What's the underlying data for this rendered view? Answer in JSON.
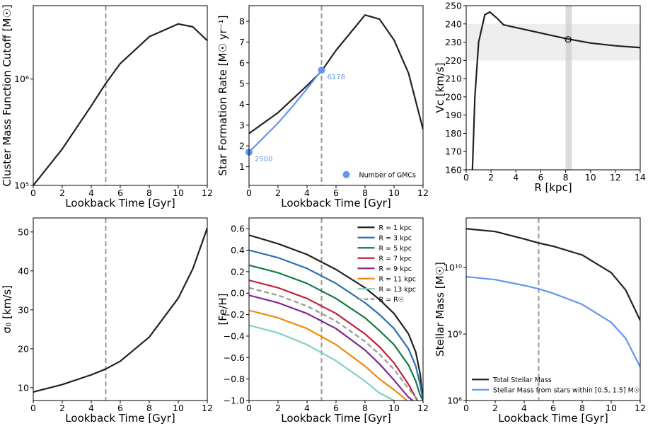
{
  "chart_data": [
    {
      "type": "line",
      "xlabel": "Lookback Time [Gyr]",
      "ylabel": "Cluster Mass Function Cutoff [M☉]",
      "xlim": [
        0,
        12
      ],
      "xticks": [
        0,
        2,
        4,
        6,
        8,
        10,
        12
      ],
      "log_y": true,
      "ylim": [
        100000,
        4900000
      ],
      "yticks": [
        {
          "value": 100000,
          "label": "10⁵"
        },
        {
          "value": 1000000,
          "label": "10⁶"
        }
      ],
      "vline": 5,
      "x": [
        0,
        2,
        4,
        5,
        6,
        8,
        10,
        11,
        12
      ],
      "series": [
        {
          "color": "#222222",
          "values": [
            100000,
            220000,
            560000,
            910000,
            1400000,
            2500000,
            3300000,
            3100000,
            2300000
          ]
        }
      ]
    },
    {
      "type": "line",
      "xlabel": "Lookback Time [Gyr]",
      "ylabel": "Star Formation Rate [M☉ yr⁻¹]",
      "xlim": [
        0,
        12
      ],
      "xticks": [
        0,
        2,
        4,
        6,
        8,
        10,
        12
      ],
      "ylim": [
        0.1,
        8.75
      ],
      "yticks": [
        1,
        2,
        3,
        4,
        5,
        6,
        7,
        8
      ],
      "vline": 5,
      "x": [
        0,
        2,
        4,
        5,
        6,
        8,
        9,
        10,
        11,
        12
      ],
      "series": [
        {
          "color": "#222222",
          "values": [
            2.6,
            3.6,
            4.9,
            5.6,
            6.6,
            8.3,
            8.1,
            7.1,
            5.5,
            2.8
          ]
        },
        {
          "color": "#6495ed",
          "x": [
            0,
            1,
            2,
            3,
            4,
            5
          ],
          "values": [
            1.7,
            2.4,
            3.1,
            3.9,
            4.75,
            5.65
          ]
        }
      ],
      "points": {
        "name": "Number of GMCs",
        "color": "#6495ed",
        "x": [
          0,
          5
        ],
        "values": [
          1.7,
          5.65
        ],
        "labels": [
          2500,
          6178
        ]
      },
      "legend": "lower right"
    },
    {
      "type": "line",
      "xlabel": "R [kpc]",
      "ylabel": "Vc [km/s]",
      "xlim": [
        0,
        14
      ],
      "xticks": [
        0,
        2,
        4,
        6,
        8,
        10,
        12,
        14
      ],
      "ylim": [
        160,
        250
      ],
      "yticks": [
        160,
        170,
        180,
        190,
        200,
        210,
        220,
        230,
        240,
        250
      ],
      "hband": [
        220,
        240
      ],
      "vband": [
        8.0,
        8.5
      ],
      "marker": {
        "x": 8.2,
        "y": 231.5
      },
      "x": [
        0.5,
        0.7,
        1,
        1.5,
        1.9,
        2.5,
        3,
        4,
        6,
        8,
        10,
        12,
        14
      ],
      "series": [
        {
          "color": "#222222",
          "values": [
            160,
            200,
            230,
            245,
            246.5,
            243,
            239.5,
            238,
            235,
            232,
            229.5,
            228,
            227
          ]
        }
      ]
    },
    {
      "type": "line",
      "xlabel": "Lookback Time [Gyr]",
      "ylabel": "σ₀ [km/s]",
      "xlim": [
        0,
        12
      ],
      "xticks": [
        0,
        2,
        4,
        6,
        8,
        10,
        12
      ],
      "ylim": [
        6.7,
        53.6
      ],
      "yticks": [
        10,
        20,
        30,
        40,
        50
      ],
      "vline": 5,
      "x": [
        0,
        2,
        4,
        5,
        6,
        8,
        10,
        11,
        12
      ],
      "series": [
        {
          "color": "#222222",
          "values": [
            8.9,
            10.8,
            13.3,
            14.8,
            16.8,
            23,
            33,
            40.5,
            51
          ]
        }
      ]
    },
    {
      "type": "line",
      "xlabel": "Lookback Time [Gyr]",
      "ylabel": "[Fe/H]",
      "xlim": [
        0,
        12
      ],
      "xticks": [
        0,
        2,
        4,
        6,
        8,
        10,
        12
      ],
      "ylim": [
        -1.0,
        0.7
      ],
      "yticks": [
        {
          "value": -1.0,
          "label": "−1.0"
        },
        {
          "value": -0.8,
          "label": "−0.8"
        },
        {
          "value": -0.6,
          "label": "−0.6"
        },
        {
          "value": -0.4,
          "label": "−0.4"
        },
        {
          "value": -0.2,
          "label": "−0.2"
        },
        {
          "value": 0,
          "label": "0.0"
        },
        0.2,
        0.4,
        0.6
      ],
      "vline": 5,
      "x": [
        0,
        2,
        4,
        6,
        8,
        9,
        10,
        11,
        11.5,
        11.8,
        12
      ],
      "series": [
        {
          "name": "R = 1 kpc",
          "color": "#222222",
          "values": [
            0.54,
            0.46,
            0.36,
            0.22,
            0.05,
            -0.06,
            -0.19,
            -0.38,
            -0.55,
            -0.75,
            -1.0
          ]
        },
        {
          "name": "R = 3 kpc",
          "color": "#2c6fb0",
          "values": [
            0.4,
            0.33,
            0.23,
            0.09,
            -0.09,
            -0.2,
            -0.33,
            -0.52,
            -0.68,
            -0.85,
            -1.0
          ]
        },
        {
          "name": "R = 5 kpc",
          "color": "#137a45",
          "values": [
            0.26,
            0.19,
            0.09,
            -0.05,
            -0.23,
            -0.35,
            -0.48,
            -0.67,
            -0.82,
            -0.95,
            -1.0
          ]
        },
        {
          "name": "R = 7 kpc",
          "color": "#c4213a",
          "x": [
            0,
            2,
            4,
            6,
            8,
            9,
            10,
            11,
            11.6
          ],
          "values": [
            0.12,
            0.05,
            -0.05,
            -0.19,
            -0.38,
            -0.5,
            -0.65,
            -0.85,
            -1.0
          ]
        },
        {
          "name": "R = 9 kpc",
          "color": "#7b2a8e",
          "x": [
            0,
            2,
            4,
            6,
            8,
            9,
            10,
            11,
            11.3
          ],
          "values": [
            -0.02,
            -0.09,
            -0.19,
            -0.33,
            -0.53,
            -0.66,
            -0.81,
            -0.97,
            -1.0
          ]
        },
        {
          "name": "R = 11 kpc",
          "color": "#f08a0c",
          "x": [
            0,
            2,
            4,
            6,
            8,
            9,
            10,
            10.9
          ],
          "values": [
            -0.16,
            -0.23,
            -0.33,
            -0.48,
            -0.68,
            -0.8,
            -0.9,
            -1.0
          ]
        },
        {
          "name": "R = 13 kpc",
          "color": "#7fd1c6",
          "x": [
            0,
            2,
            4,
            6,
            8,
            9,
            10
          ],
          "values": [
            -0.3,
            -0.37,
            -0.48,
            -0.63,
            -0.82,
            -0.93,
            -1.0
          ]
        },
        {
          "name": "R = R☉",
          "color": "#999999",
          "dashed": true,
          "x": [
            0,
            2,
            4,
            6,
            8,
            9,
            10,
            11,
            11.7
          ],
          "values": [
            0.05,
            -0.02,
            -0.12,
            -0.26,
            -0.45,
            -0.57,
            -0.71,
            -0.89,
            -1.0
          ]
        }
      ],
      "legend": "upper right"
    },
    {
      "type": "line",
      "xlabel": "Lookback Time [Gyr]",
      "ylabel": "Stellar Mass [M☉]",
      "xlim": [
        0,
        12
      ],
      "xticks": [
        0,
        2,
        4,
        6,
        8,
        10,
        12
      ],
      "log_y": true,
      "ylim": [
        100000000,
        56000000000
      ],
      "yticks": [
        {
          "value": 100000000,
          "label": "10⁸"
        },
        {
          "value": 1000000000,
          "label": "10⁹"
        },
        {
          "value": 10000000000,
          "label": "10¹⁰"
        }
      ],
      "vline": 5,
      "x": [
        0,
        2,
        4,
        5,
        6,
        8,
        10,
        11,
        12
      ],
      "series": [
        {
          "name": "Total Stellar Mass",
          "color": "#222222",
          "values": [
            38500000000,
            35000000000,
            27000000000,
            23500000000,
            21000000000,
            15500000000,
            8400000000,
            4600000000,
            1600000000
          ]
        },
        {
          "name": "Stellar Mass from stars within [0.5, 1.5] M☉",
          "color": "#6495ed",
          "values": [
            7300000000,
            6600000000,
            5400000000,
            4800000000,
            4100000000,
            2800000000,
            1500000000,
            860000000,
            320000000
          ]
        }
      ],
      "legend": "lower left"
    }
  ]
}
